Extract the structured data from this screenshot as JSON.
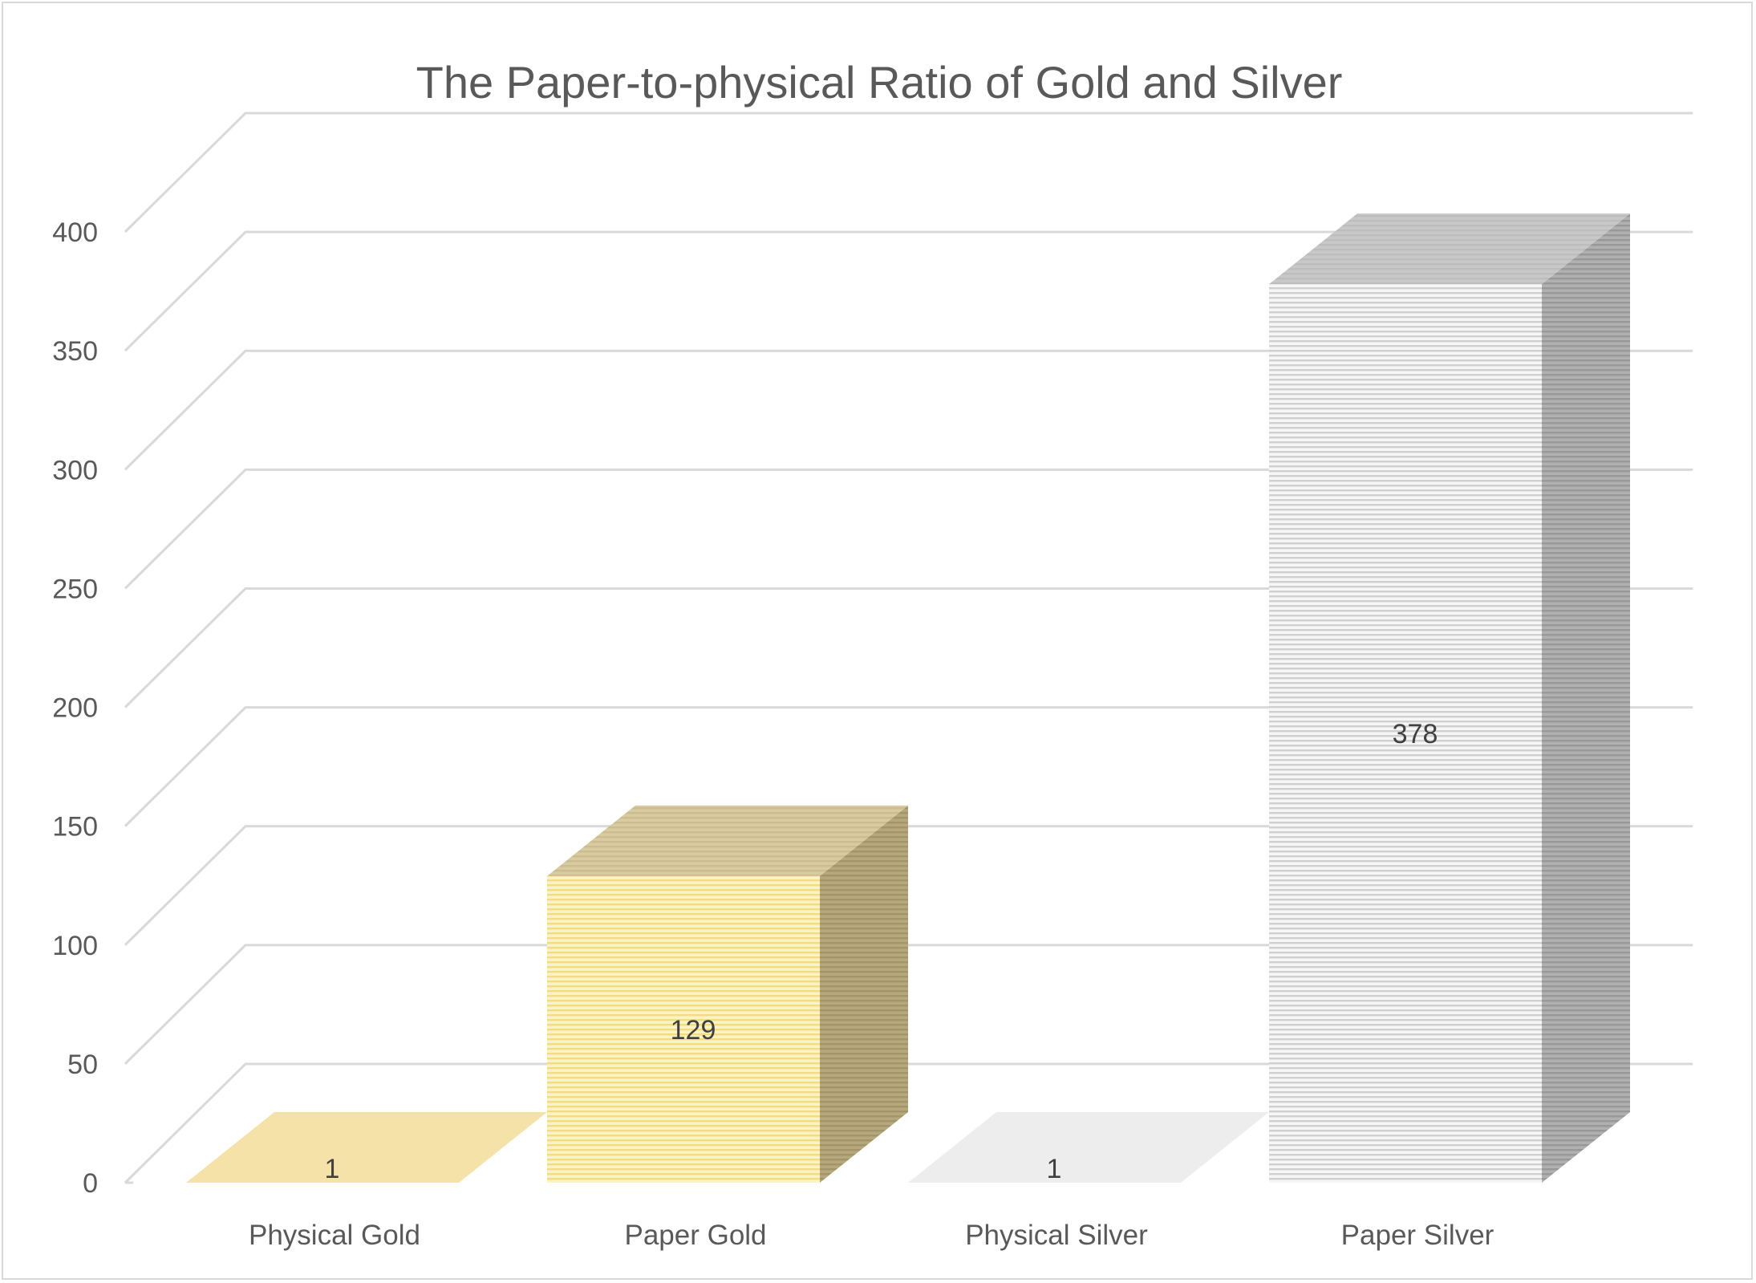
{
  "chart_data": {
    "type": "bar",
    "title": "The Paper-to-physical Ratio of Gold and Silver",
    "xlabel": "",
    "ylabel": "",
    "categories": [
      "Physical Gold",
      "Paper Gold",
      "Physical Silver",
      "Paper Silver"
    ],
    "values": [
      1,
      129,
      1,
      378
    ],
    "data_labels": [
      "1",
      "129",
      "1",
      "378"
    ],
    "ylim": [
      0,
      400
    ],
    "yticks": [
      0,
      50,
      100,
      150,
      200,
      250,
      300,
      350,
      400
    ],
    "grid": true,
    "legend": "none",
    "style": "3d-column",
    "colors": {
      "Physical Gold": "#f5e2a8",
      "Paper Gold": "#f9eeb0",
      "Physical Silver": "#ededed",
      "Paper Silver": "#e4e4e4"
    }
  }
}
